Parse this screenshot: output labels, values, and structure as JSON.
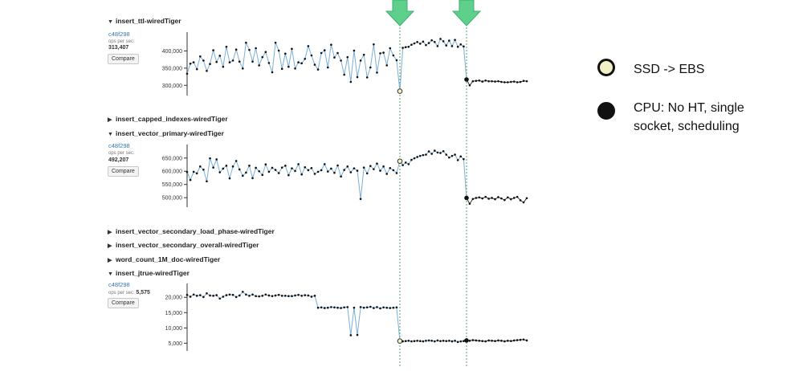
{
  "sections": [
    {
      "name": "insert_ttl-wiredTiger",
      "expanded": true
    },
    {
      "name": "insert_capped_indexes-wiredTiger",
      "expanded": false
    },
    {
      "name": "insert_vector_primary-wiredTiger",
      "expanded": true
    },
    {
      "name": "insert_vector_secondary_load_phase-wiredTiger",
      "expanded": false
    },
    {
      "name": "insert_vector_secondary_overall-wiredTiger",
      "expanded": false
    },
    {
      "name": "word_count_1M_doc-wiredTiger",
      "expanded": false
    },
    {
      "name": "insert_jtrue-wiredTiger",
      "expanded": true
    }
  ],
  "panels": [
    {
      "commit": "c48f298",
      "ops_label": "ops per sec:",
      "ops_value": "313,407",
      "compare_label": "Compare"
    },
    {
      "commit": "c48f298",
      "ops_label": "ops per sec:",
      "ops_value": "492,207",
      "compare_label": "Compare"
    },
    {
      "commit": "c48f298",
      "ops_label": "ops per sec:",
      "ops_value": "5,575",
      "compare_label": "Compare"
    }
  ],
  "legend": [
    {
      "label": "SSD -> EBS",
      "marker_color": "#f3efc6",
      "marker_border": "#111111"
    },
    {
      "label": "CPU: No HT, single socket, scheduling",
      "line1": "CPU: No HT, single",
      "line2": "socket, scheduling",
      "marker_color": "#111111",
      "marker_border": "#111111"
    }
  ],
  "colors": {
    "arrow": "#5fd08c",
    "arrow_border": "#3fae6e",
    "line": "#7aaed6",
    "point": "#111111",
    "axis": "#333333",
    "guide": "#2f8a4f"
  },
  "chart_data": [
    {
      "type": "line",
      "title": "insert_ttl-wiredTiger",
      "ylabel": "",
      "yticks": [
        300000,
        350000,
        400000
      ],
      "ytick_labels": [
        "300,000",
        "350,000",
        "400,000"
      ],
      "ylim": [
        275000,
        450000
      ],
      "events": [
        {
          "index": 65,
          "type": "SSD -> EBS"
        },
        {
          "index": 88,
          "type": "CPU: No HT, single socket, scheduling"
        }
      ],
      "values": [
        334000,
        363000,
        367000,
        347000,
        384000,
        372000,
        342000,
        362000,
        402000,
        368000,
        386000,
        354000,
        412000,
        367000,
        372000,
        404000,
        369000,
        349000,
        424000,
        403000,
        369000,
        408000,
        358000,
        382000,
        397000,
        365000,
        338000,
        424000,
        401000,
        348000,
        392000,
        354000,
        406000,
        349000,
        367000,
        364000,
        377000,
        414000,
        387000,
        360000,
        346000,
        394000,
        402000,
        352000,
        418000,
        381000,
        394000,
        372000,
        331000,
        382000,
        310000,
        401000,
        324000,
        372000,
        389000,
        323000,
        352000,
        419000,
        337000,
        393000,
        395000,
        358000,
        408000,
        387000,
        373000,
        283000,
        409000,
        411000,
        412000,
        418000,
        422000,
        426000,
        421000,
        427000,
        417000,
        423000,
        431000,
        426000,
        414000,
        435000,
        428000,
        416000,
        430000,
        414000,
        432000,
        412000,
        419000,
        413000,
        317000,
        300000,
        312000,
        313000,
        314000,
        311000,
        314000,
        312000,
        312000,
        311000,
        312000,
        310000,
        309000,
        309000,
        310000,
        311000,
        309000,
        310000,
        313000,
        312000
      ]
    },
    {
      "type": "line",
      "title": "insert_vector_primary-wiredTiger",
      "ylabel": "",
      "yticks": [
        500000,
        550000,
        600000,
        650000
      ],
      "ytick_labels": [
        "500,000",
        "550,000",
        "600,000",
        "650,000"
      ],
      "ylim": [
        470000,
        695000
      ],
      "events": [
        {
          "index": 65,
          "type": "SSD -> EBS"
        },
        {
          "index": 88,
          "type": "CPU: No HT, single socket, scheduling"
        }
      ],
      "values": [
        597000,
        567000,
        598000,
        592000,
        618000,
        606000,
        562000,
        649000,
        614000,
        645000,
        596000,
        610000,
        621000,
        573000,
        618000,
        639000,
        607000,
        583000,
        595000,
        621000,
        574000,
        613000,
        600000,
        586000,
        626000,
        598000,
        613000,
        605000,
        593000,
        614000,
        621000,
        585000,
        611000,
        601000,
        627000,
        588000,
        615000,
        604000,
        612000,
        590000,
        598000,
        604000,
        627000,
        599000,
        610000,
        594000,
        622000,
        580000,
        605000,
        618000,
        596000,
        611000,
        602000,
        495000,
        614000,
        592000,
        620000,
        608000,
        629000,
        602000,
        618000,
        590000,
        612000,
        604000,
        593000,
        638000,
        623000,
        633000,
        627000,
        643000,
        649000,
        654000,
        658000,
        661000,
        663000,
        675000,
        666000,
        678000,
        671000,
        669000,
        676000,
        663000,
        652000,
        658000,
        663000,
        642000,
        656000,
        646000,
        499000,
        477000,
        495000,
        499000,
        501000,
        497000,
        503000,
        496000,
        499000,
        494000,
        502000,
        497000,
        491000,
        501000,
        494000,
        499000,
        503000,
        490000,
        482000,
        498000
      ]
    },
    {
      "type": "line",
      "title": "insert_jtrue-wiredTiger",
      "ylabel": "",
      "yticks": [
        5000,
        10000,
        15000,
        20000
      ],
      "ytick_labels": [
        "5,000",
        "10,000",
        "15,000",
        "20,000"
      ],
      "ylim": [
        3000,
        24000
      ],
      "events": [
        {
          "index": 65,
          "type": "SSD -> EBS"
        },
        {
          "index": 88,
          "type": "CPU: No HT, single socket, scheduling"
        }
      ],
      "values": [
        20800,
        20200,
        20900,
        20500,
        20700,
        20100,
        21300,
        20600,
        20500,
        20700,
        19600,
        20200,
        20700,
        20900,
        20800,
        20100,
        20600,
        21800,
        20900,
        20500,
        20900,
        20400,
        20300,
        20500,
        20900,
        20600,
        20400,
        20600,
        20800,
        20500,
        20500,
        20400,
        20400,
        20600,
        20800,
        20500,
        20700,
        20600,
        20200,
        20500,
        16600,
        16700,
        16500,
        16600,
        16800,
        16700,
        16600,
        16500,
        16700,
        16800,
        7600,
        16600,
        7700,
        16800,
        16600,
        16700,
        16900,
        16500,
        16800,
        16400,
        16700,
        16600,
        16500,
        16600,
        16700,
        5700,
        5600,
        5700,
        5800,
        5600,
        5700,
        5800,
        5700,
        5600,
        5800,
        5900,
        5800,
        5600,
        5900,
        5700,
        5800,
        5700,
        5800,
        5600,
        5800,
        5400,
        5600,
        5700,
        5900,
        5800,
        6000,
        5900,
        5800,
        5700,
        5600,
        5900,
        5800,
        5700,
        5900,
        5800,
        5600,
        5800,
        5700,
        5900,
        6000,
        6100,
        6200,
        5900
      ]
    }
  ]
}
